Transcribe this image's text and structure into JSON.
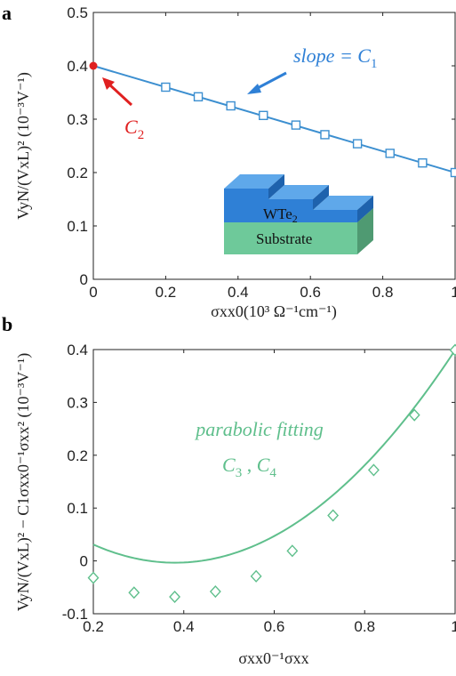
{
  "chart_data": [
    {
      "panel": "a",
      "type": "line",
      "xlabel": "σxx0(10³ Ω⁻¹cm⁻¹)",
      "ylabel": "VyN/(VxL)² (10⁻³V⁻¹)",
      "xlim": [
        0,
        1
      ],
      "ylim": [
        0,
        0.5
      ],
      "xticks": [
        0,
        0.2,
        0.4,
        0.6,
        0.8,
        1
      ],
      "xtick_labels": [
        "0",
        "0.2",
        "0.4",
        "0.6",
        "0.8",
        "1"
      ],
      "yticks": [
        0,
        0.1,
        0.2,
        0.3,
        0.4,
        0.5
      ],
      "ytick_labels": [
        "0",
        "0.1",
        "0.2",
        "0.3",
        "0.4",
        "0.5"
      ],
      "grid": false,
      "series": [
        {
          "marker": "square",
          "color": "#3c8fd0",
          "x": [
            0.2,
            0.29,
            0.38,
            0.47,
            0.56,
            0.64,
            0.73,
            0.82,
            0.91,
            1.0
          ],
          "y": [
            0.36,
            0.342,
            0.325,
            0.307,
            0.289,
            0.271,
            0.254,
            0.236,
            0.218,
            0.2
          ]
        }
      ],
      "fit_line": {
        "x": [
          0,
          1
        ],
        "y": [
          0.4,
          0.2
        ],
        "color": "#3c8fd0"
      },
      "intercept_point": {
        "x": 0,
        "y": 0.4,
        "color": "#e02020"
      },
      "annotations": {
        "slope_text": "slope = C",
        "slope_sub": "1",
        "intercept_text": "C",
        "intercept_sub": "2"
      },
      "inset": {
        "top_label": "WTe",
        "top_sub": "2",
        "bottom_label": "Substrate"
      }
    },
    {
      "panel": "b",
      "type": "line",
      "xlabel": "σxx0⁻¹σxx",
      "ylabel": "VyN/(VxL)² − C1σxx0⁻¹σxx² (10⁻³V⁻¹)",
      "xlim": [
        0.2,
        1
      ],
      "ylim": [
        -0.1,
        0.4
      ],
      "xticks": [
        0.2,
        0.4,
        0.6,
        0.8,
        1
      ],
      "xtick_labels": [
        "0.2",
        "0.4",
        "0.6",
        "0.8",
        "1"
      ],
      "yticks": [
        -0.1,
        0,
        0.1,
        0.2,
        0.3,
        0.4
      ],
      "ytick_labels": [
        "-0.1",
        "0",
        "0.1",
        "0.2",
        "0.3",
        "0.4"
      ],
      "grid": false,
      "series": [
        {
          "marker": "diamond",
          "color": "#5fbf8c",
          "x": [
            0.2,
            0.29,
            0.38,
            0.47,
            0.56,
            0.64,
            0.73,
            0.82,
            0.91,
            1.0
          ],
          "y": [
            -0.032,
            -0.06,
            -0.068,
            -0.058,
            -0.029,
            0.019,
            0.086,
            0.172,
            0.276,
            0.399
          ]
        }
      ],
      "fit_curve": {
        "a": 1.05,
        "b": -0.8,
        "c": 0.149,
        "color": "#5fbf8c"
      },
      "annotations": {
        "fit_label": "parabolic fitting",
        "coef_c3": "C",
        "coef_c3_sub": "3",
        "coef_c4": "C",
        "coef_c4_sub": "4"
      }
    }
  ],
  "panel_labels": {
    "a": "a",
    "b": "b"
  }
}
